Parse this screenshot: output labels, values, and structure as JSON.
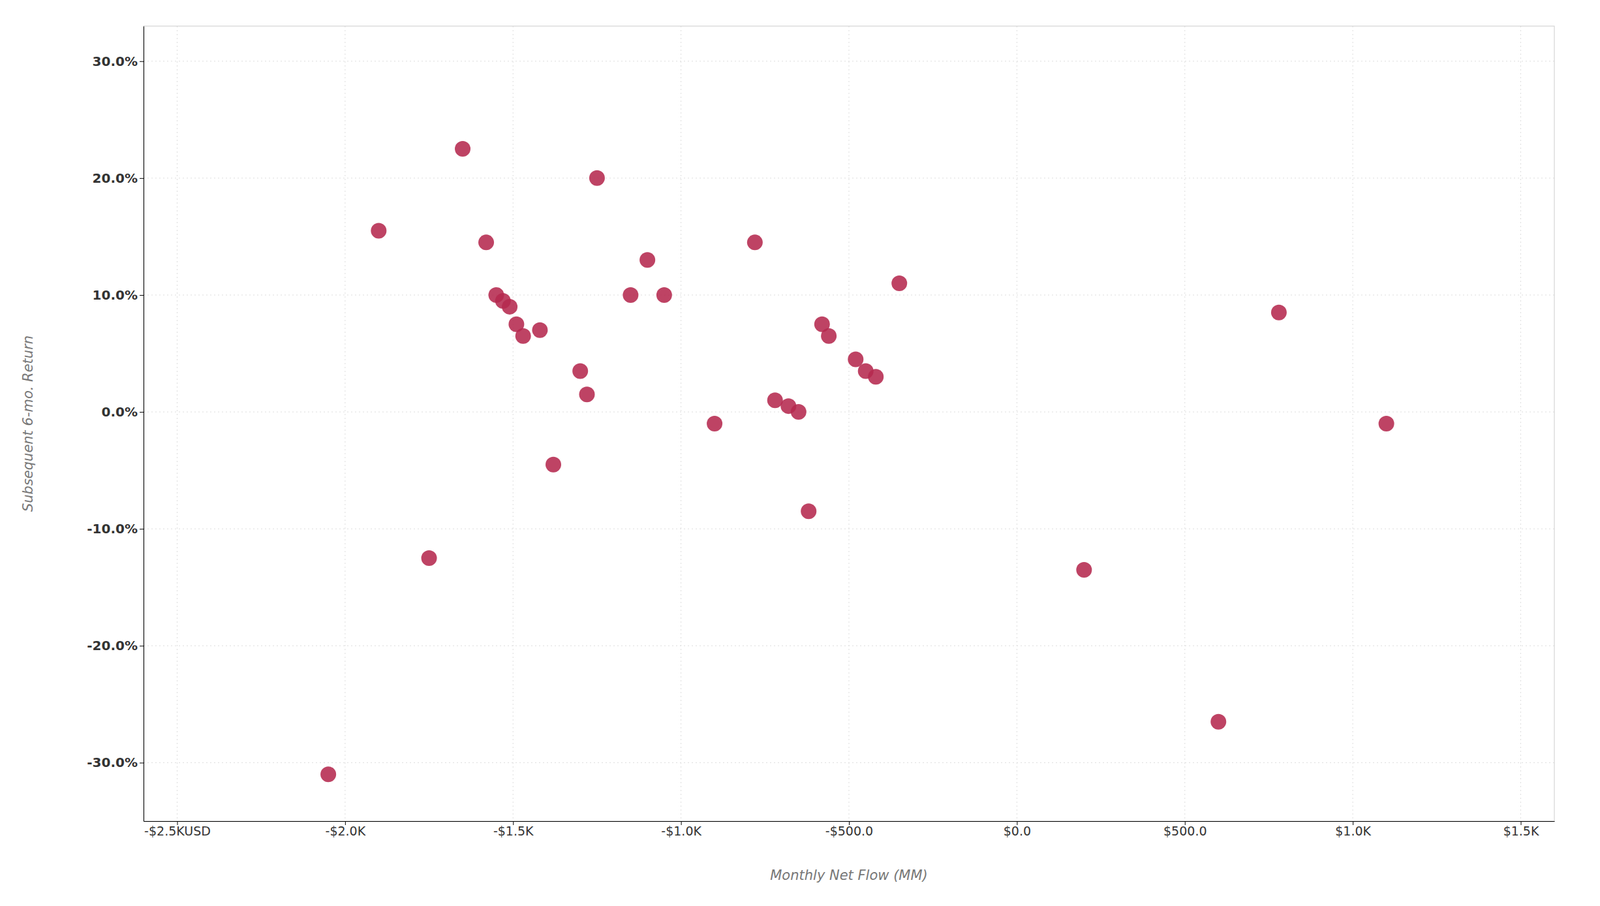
{
  "chart_data": {
    "type": "scatter",
    "xlabel": "Monthly Net Flow (MM)",
    "ylabel": "Subsequent 6-mo. Return",
    "x": [
      -2050,
      -1900,
      -1750,
      -1650,
      -1580,
      -1550,
      -1530,
      -1510,
      -1490,
      -1470,
      -1420,
      -1380,
      -1300,
      -1280,
      -1250,
      -1150,
      -1100,
      -1050,
      -900,
      -780,
      -720,
      -680,
      -650,
      -620,
      -580,
      -560,
      -480,
      -450,
      -420,
      -350,
      200,
      600,
      780,
      1100
    ],
    "values": [
      -31.0,
      15.5,
      -12.5,
      22.5,
      14.5,
      10.0,
      9.5,
      9.0,
      7.5,
      6.5,
      7.0,
      -4.5,
      3.5,
      1.5,
      20.0,
      10.0,
      13.0,
      10.0,
      -1.0,
      14.5,
      1.0,
      0.5,
      0.0,
      -8.5,
      7.5,
      6.5,
      4.5,
      3.5,
      3.0,
      11.0,
      -13.5,
      -26.5,
      8.5,
      -1.0
    ],
    "color": "#b5294e",
    "xlim": [
      -2600,
      1600
    ],
    "ylim": [
      -35,
      33
    ],
    "xticks": [
      {
        "value": -2500,
        "label": "-$2.5KUSD"
      },
      {
        "value": -2000,
        "label": "-$2.0K"
      },
      {
        "value": -1500,
        "label": "-$1.5K"
      },
      {
        "value": -1000,
        "label": "-$1.0K"
      },
      {
        "value": -500,
        "label": "-$500.0"
      },
      {
        "value": 0,
        "label": "$0.0"
      },
      {
        "value": 500,
        "label": "$500.0"
      },
      {
        "value": 1000,
        "label": "$1.0K"
      },
      {
        "value": 1500,
        "label": "$1.5K"
      }
    ],
    "yticks": [
      {
        "value": -30,
        "label": "-30.0%"
      },
      {
        "value": -20,
        "label": "-20.0%"
      },
      {
        "value": -10,
        "label": "-10.0%"
      },
      {
        "value": 0,
        "label": "0.0%"
      },
      {
        "value": 10,
        "label": "10.0%"
      },
      {
        "value": 20,
        "label": "20.0%"
      },
      {
        "value": 30,
        "label": "30.0%"
      }
    ],
    "grid": true
  }
}
